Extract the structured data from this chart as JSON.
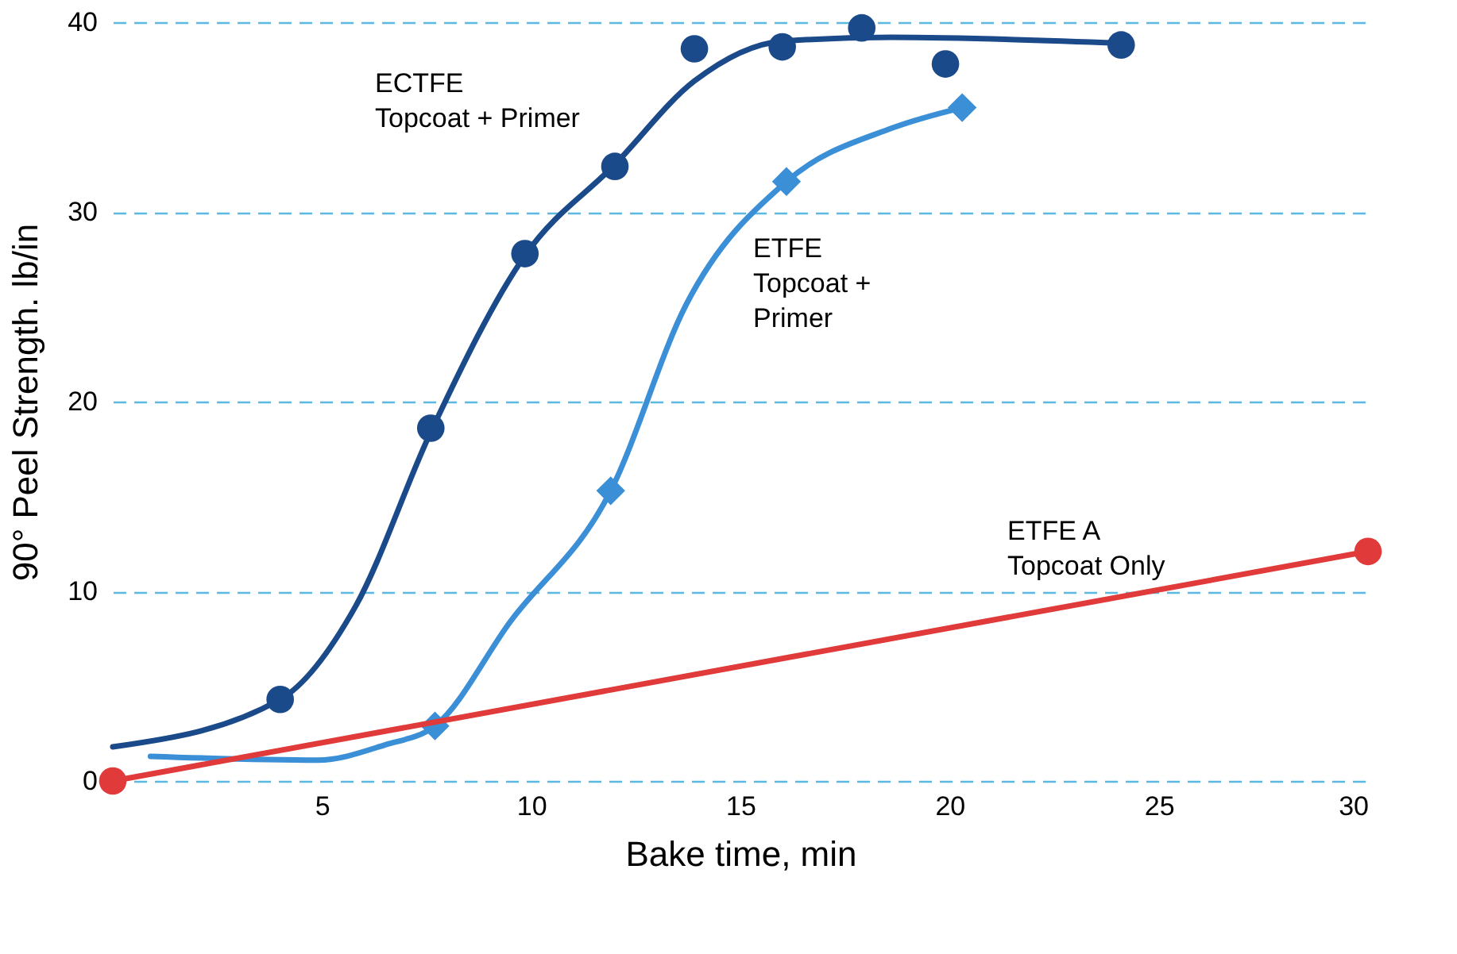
{
  "chart_data": {
    "type": "line",
    "xlabel": "Bake time, min",
    "ylabel": "90° Peel Strength. lb/in",
    "xlim": [
      0,
      30
    ],
    "xticks": [
      5,
      10,
      15,
      20,
      25,
      30
    ],
    "ylim": [
      0,
      40
    ],
    "yticks": [
      0,
      10,
      20,
      30,
      40
    ],
    "grid": "y",
    "series": [
      {
        "name": "ECTFE\nTopcoat + Primer",
        "color": "#1b4a8a",
        "marker": "none",
        "x": [
          0,
          4,
          5.8,
          7.6,
          9.85,
          12,
          13.9,
          16,
          18.6,
          24.1
        ],
        "values": [
          1.8,
          4.3,
          9.2,
          18.4,
          27.7,
          32.5,
          36.9,
          39,
          39.2,
          38.9
        ]
      },
      {
        "type": "scatter",
        "color": "#1b4a8a",
        "marker": "circle",
        "x": [
          4,
          7.6,
          9.85,
          12,
          13.9,
          16,
          17.9,
          19.9,
          24.1
        ],
        "values": [
          4.3,
          18.6,
          27.8,
          32.4,
          38.6,
          38.7,
          39.7,
          37.8,
          38.8
        ]
      },
      {
        "name": "ETFE\nTopcoat +\nPrimer",
        "color": "#3a8fd6",
        "marker": "none",
        "x": [
          0.9,
          4.9,
          6.5,
          7.7,
          9.5,
          11.9,
          13.7,
          16.1,
          18.6,
          20.3
        ],
        "values": [
          1.3,
          1.1,
          1.9,
          2.9,
          8.4,
          15.3,
          25.1,
          31.6,
          34.4,
          35.5
        ]
      },
      {
        "type": "scatter",
        "color": "#3a8fd6",
        "marker": "diamond",
        "x": [
          7.7,
          11.9,
          16.1,
          20.3
        ],
        "values": [
          2.9,
          15.3,
          31.6,
          35.5
        ]
      },
      {
        "name": "ETFE A\nTopcoat Only",
        "color": "#e03a3a",
        "marker": "circle",
        "x": [
          0,
          30
        ],
        "values": [
          0,
          12.1
        ]
      }
    ]
  }
}
